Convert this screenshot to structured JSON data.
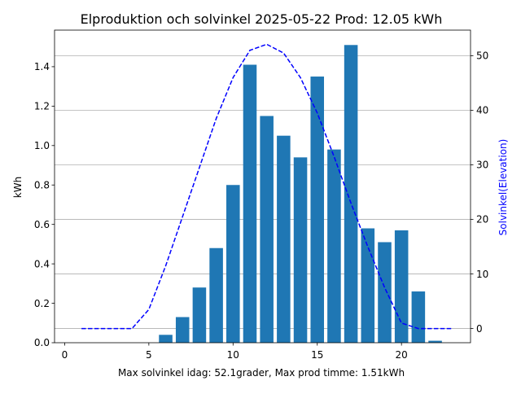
{
  "chart_data": {
    "type": "bar",
    "title": "Elproduktion och solvinkel 2025-05-22 Prod: 12.05 kWh",
    "xlabel": "Max solvinkel idag: 52.1grader, Max prod timme: 1.51kWh",
    "ylabel": "kWh",
    "y2label": "Solvinkel(Elevation)",
    "xlim": [
      -0.6,
      24.1
    ],
    "ylim": [
      0,
      1.5855
    ],
    "y2lim": [
      -2.6,
      54.7
    ],
    "xticks": [
      0,
      5,
      10,
      15,
      20
    ],
    "xtick_labels": [
      "0",
      "5",
      "10",
      "15",
      "20"
    ],
    "yticks": [
      0.0,
      0.2,
      0.4,
      0.6,
      0.8,
      1.0,
      1.2,
      1.4
    ],
    "ytick_labels": [
      "0.0",
      "0.2",
      "0.4",
      "0.6",
      "0.8",
      "1.0",
      "1.2",
      "1.4"
    ],
    "y2ticks": [
      0,
      10,
      20,
      30,
      40,
      50
    ],
    "y2tick_labels": [
      "0",
      "10",
      "20",
      "30",
      "40",
      "50"
    ],
    "grid": "horizontal, right axis",
    "bar_color": "#1f77b4",
    "line_color": "#0000ff",
    "line_style": "dashed",
    "series": [
      {
        "type": "bar",
        "axis": "left",
        "x": [
          6,
          7,
          8,
          9,
          10,
          11,
          12,
          13,
          14,
          15,
          16,
          17,
          18,
          19,
          20,
          21,
          22
        ],
        "values": [
          0.04,
          0.13,
          0.28,
          0.48,
          0.8,
          1.41,
          1.15,
          1.05,
          0.94,
          1.35,
          0.98,
          1.51,
          0.58,
          0.51,
          0.57,
          0.26,
          0.01
        ]
      },
      {
        "type": "line",
        "axis": "right",
        "x": [
          1,
          2,
          3,
          4,
          5,
          6,
          7,
          8,
          9,
          10,
          11,
          12,
          13,
          14,
          15,
          16,
          17,
          18,
          19,
          20,
          21,
          22,
          23
        ],
        "values": [
          0,
          0,
          0,
          0,
          3.5,
          11.5,
          20.5,
          29.5,
          38.5,
          46.0,
          51.0,
          52.1,
          50.5,
          46.0,
          39.5,
          31.5,
          23.0,
          15.0,
          7.5,
          1.0,
          0,
          0,
          0
        ]
      }
    ]
  }
}
